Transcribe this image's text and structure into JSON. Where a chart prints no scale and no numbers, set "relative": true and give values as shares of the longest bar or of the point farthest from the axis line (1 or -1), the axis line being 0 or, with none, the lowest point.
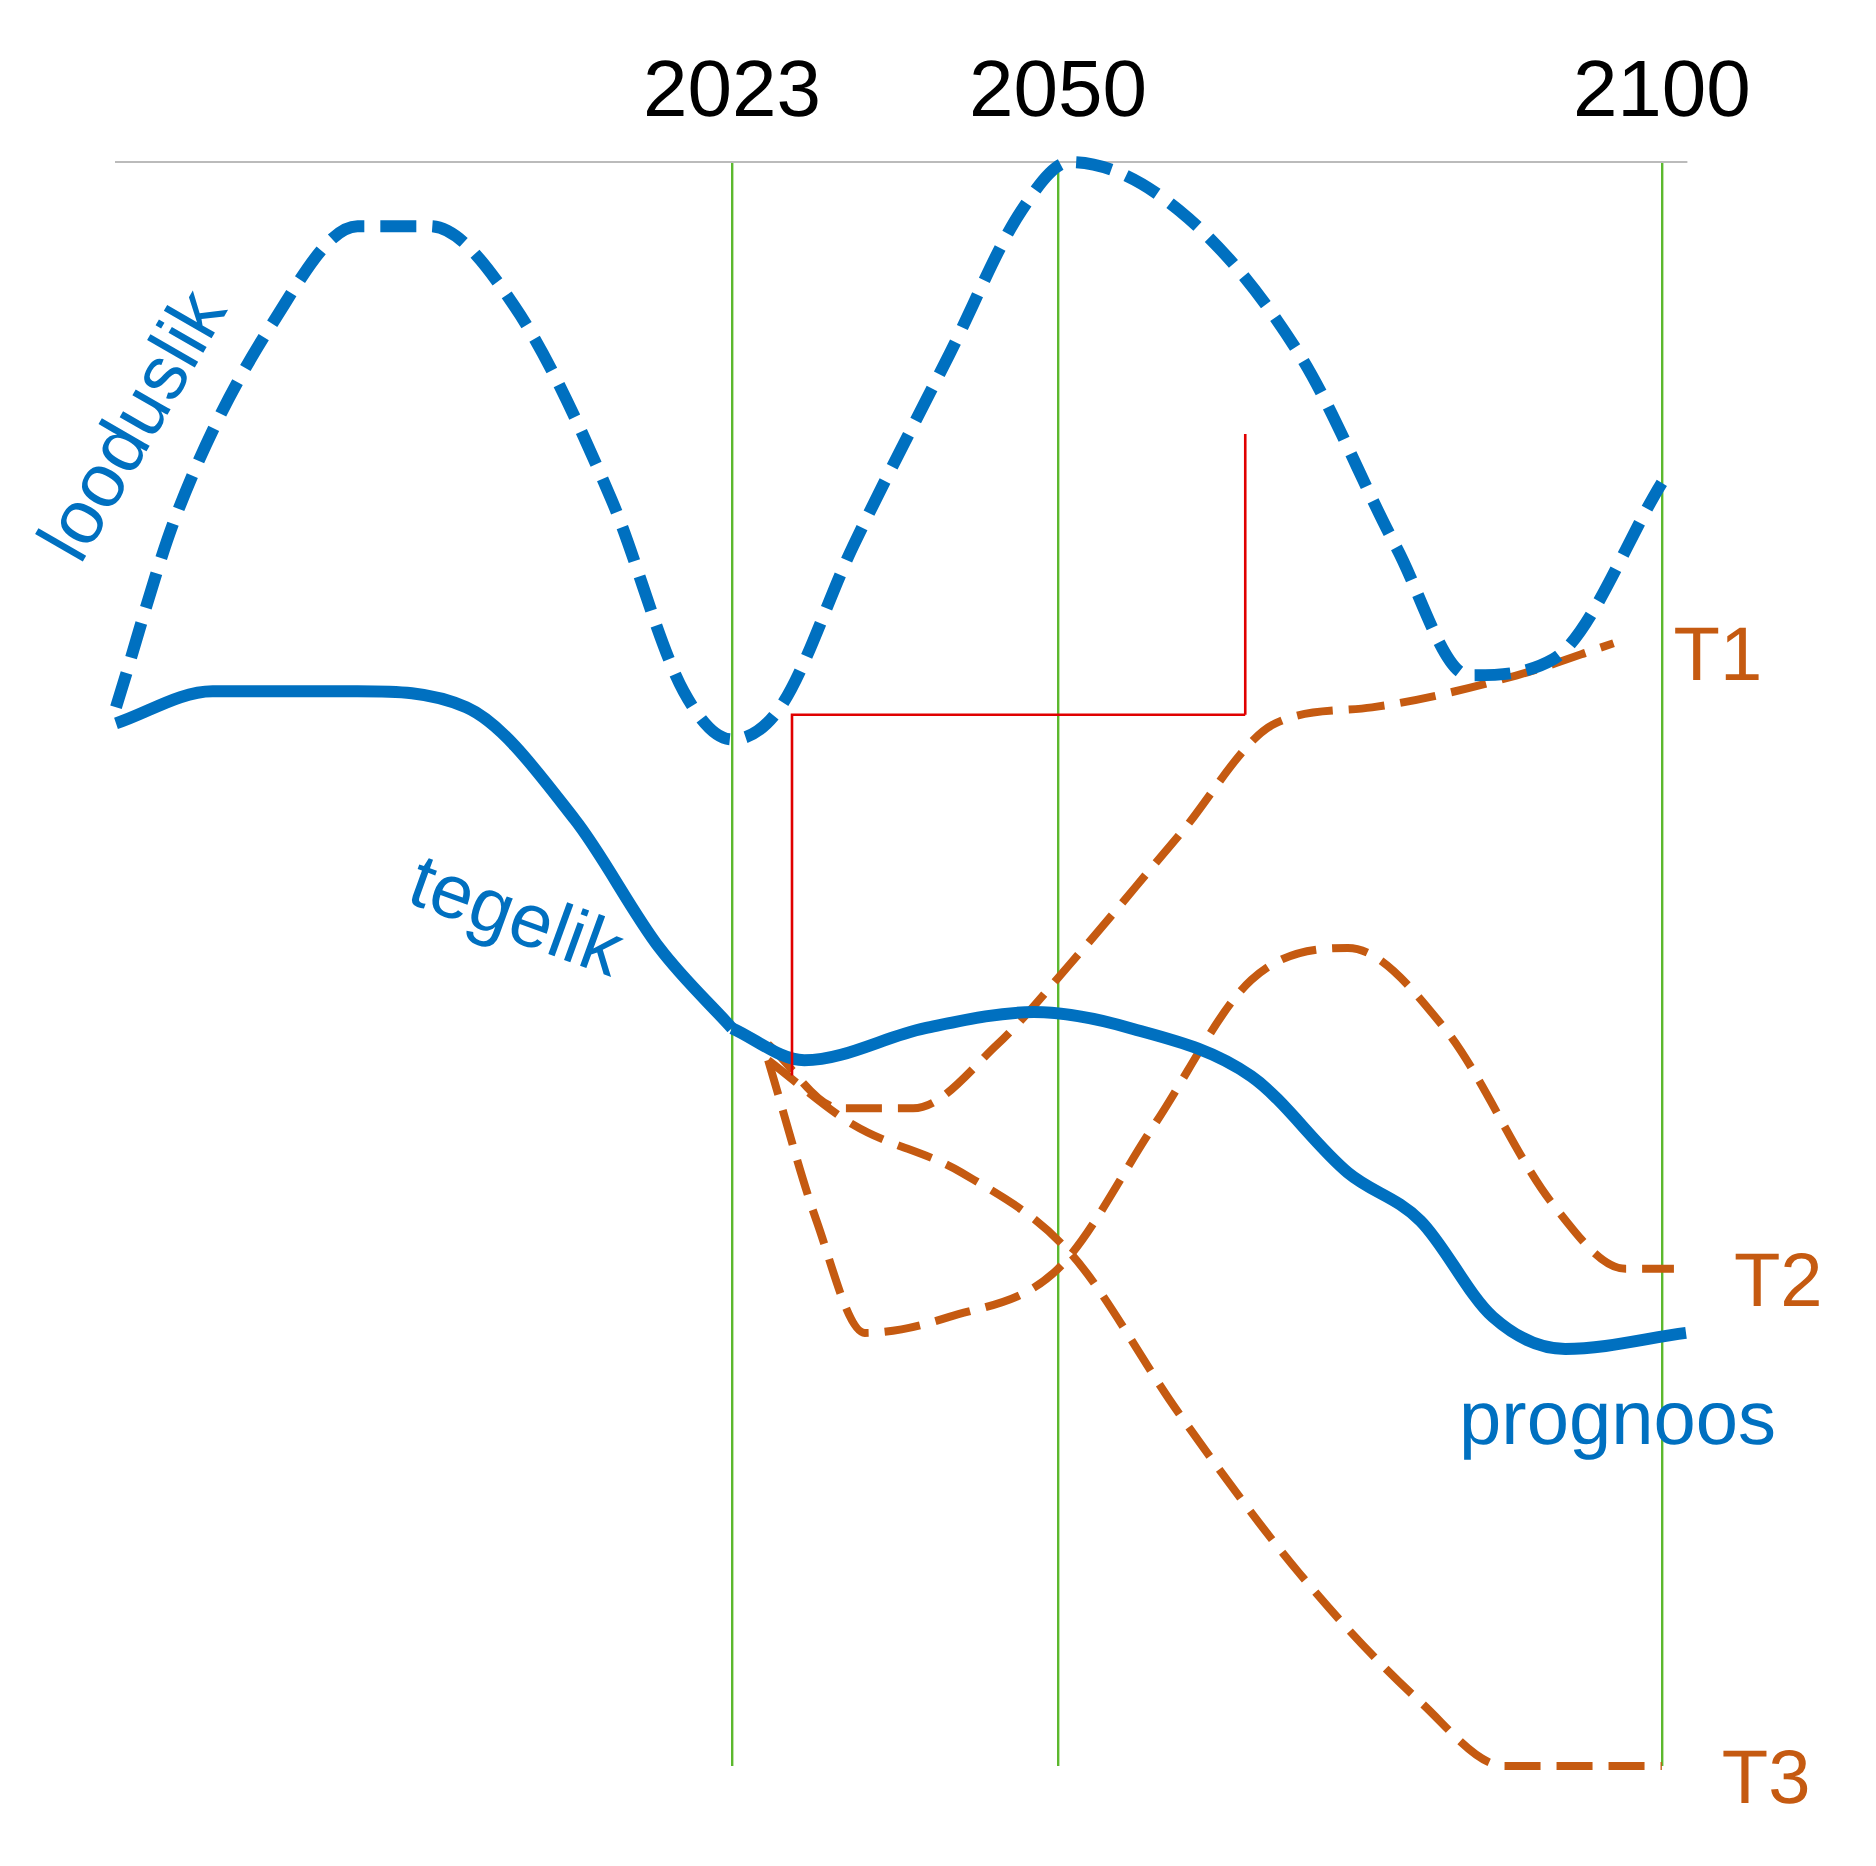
{
  "chart_data": {
    "type": "line",
    "relative": true,
    "xlim": [
      1972,
      2102
    ],
    "xticks": [
      2023,
      2050,
      2100
    ],
    "grid": "x",
    "legend": false,
    "marker": "none",
    "series": [
      {
        "name": "looduslik",
        "color": "#0070c0",
        "line_style": "dashed",
        "x": [
          1972,
          1977,
          1985,
          1992,
          1998,
          2005,
          2013,
          2019,
          2023,
          2027,
          2033,
          2041,
          2047,
          2051,
          2060,
          2070,
          2078,
          2084,
          2091,
          2100
        ],
        "values": [
          0.66,
          0.78,
          0.9,
          0.96,
          0.96,
          0.91,
          0.79,
          0.67,
          0.64,
          0.66,
          0.76,
          0.88,
          0.97,
          1,
          0.97,
          0.88,
          0.76,
          0.68,
          0.69,
          0.8
        ]
      },
      {
        "name": "tegelik",
        "color": "#0070c0",
        "line_style": "solid",
        "x": [
          1972,
          1980,
          1992,
          2001,
          2010,
          2017,
          2023
        ],
        "values": [
          0.65,
          0.67,
          0.67,
          0.66,
          0.59,
          0.51,
          0.46
        ]
      },
      {
        "name": "prognoos",
        "color": "#0070c0",
        "line_style": "solid",
        "x": [
          2023,
          2029,
          2039,
          2048,
          2056,
          2066,
          2074,
          2080,
          2086,
          2092,
          2102
        ],
        "values": [
          0.46,
          0.44,
          0.46,
          0.47,
          0.46,
          0.43,
          0.37,
          0.34,
          0.28,
          0.26,
          0.27
        ]
      },
      {
        "name": "T1",
        "color": "#c55a11",
        "line_style": "dashed",
        "x": [
          2026,
          2032,
          2038,
          2045,
          2051,
          2060,
          2068,
          2076,
          2088,
          2096
        ],
        "values": [
          0.45,
          0.41,
          0.41,
          0.45,
          0.5,
          0.58,
          0.65,
          0.66,
          0.68,
          0.7
        ]
      },
      {
        "name": "T2",
        "color": "#c55a11",
        "line_style": "dashed",
        "x": [
          2026,
          2030,
          2034,
          2041,
          2050,
          2058,
          2066,
          2074,
          2082,
          2091,
          2097,
          2101
        ],
        "values": [
          0.44,
          0.34,
          0.27,
          0.28,
          0.31,
          0.4,
          0.49,
          0.51,
          0.46,
          0.35,
          0.31,
          0.31
        ]
      },
      {
        "name": "T3",
        "color": "#c55a11",
        "line_style": "dashed",
        "x": [
          2026,
          2033,
          2042,
          2051,
          2060,
          2070,
          2080,
          2087,
          2100
        ],
        "values": [
          0.44,
          0.4,
          0.37,
          0.32,
          0.22,
          0.12,
          0.04,
          0,
          0
        ]
      }
    ]
  }
}
